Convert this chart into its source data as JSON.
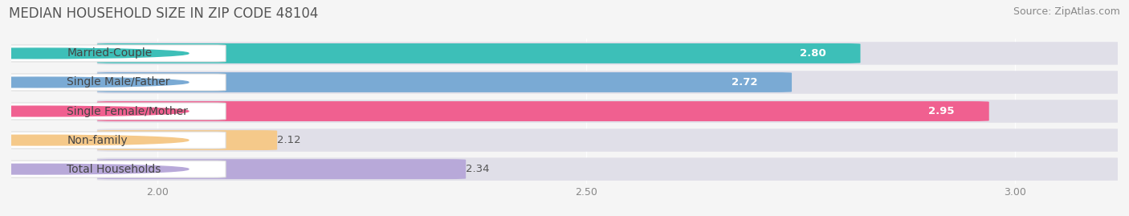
{
  "title": "MEDIAN HOUSEHOLD SIZE IN ZIP CODE 48104",
  "source": "Source: ZipAtlas.com",
  "categories": [
    "Married-Couple",
    "Single Male/Father",
    "Single Female/Mother",
    "Non-family",
    "Total Households"
  ],
  "values": [
    2.8,
    2.72,
    2.95,
    2.12,
    2.34
  ],
  "bar_colors": [
    "#3dbfb8",
    "#7aaad4",
    "#f06090",
    "#f5c98a",
    "#b8a9d9"
  ],
  "label_dot_colors": [
    "#3dbfb8",
    "#7aaad4",
    "#f06090",
    "#f5c98a",
    "#b8a9d9"
  ],
  "xlim": [
    1.83,
    3.12
  ],
  "xticks": [
    2.0,
    2.5,
    3.0
  ],
  "xstart": 1.95,
  "background_color": "#f5f5f5",
  "bar_bg_color": "#e8e8e8",
  "title_fontsize": 12,
  "source_fontsize": 9,
  "label_fontsize": 10,
  "value_fontsize": 9.5
}
